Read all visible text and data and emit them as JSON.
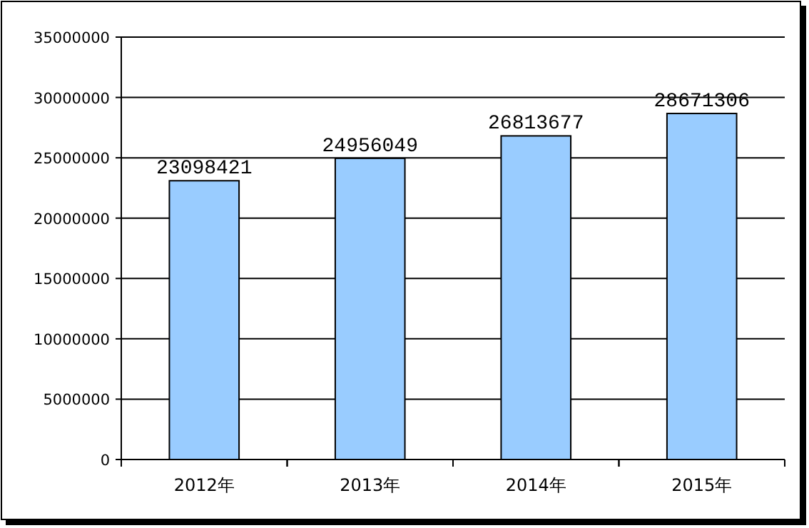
{
  "chart_data": {
    "type": "bar",
    "categories": [
      "2012年",
      "2013年",
      "2014年",
      "2015年"
    ],
    "values": [
      23098421,
      24956049,
      26813677,
      28671306
    ],
    "color": "#99ccff",
    "ylim": [
      0,
      35000000
    ],
    "yticks": [
      0,
      5000000,
      10000000,
      15000000,
      20000000,
      25000000,
      30000000,
      35000000
    ],
    "grid": "y",
    "data_labels": true
  }
}
